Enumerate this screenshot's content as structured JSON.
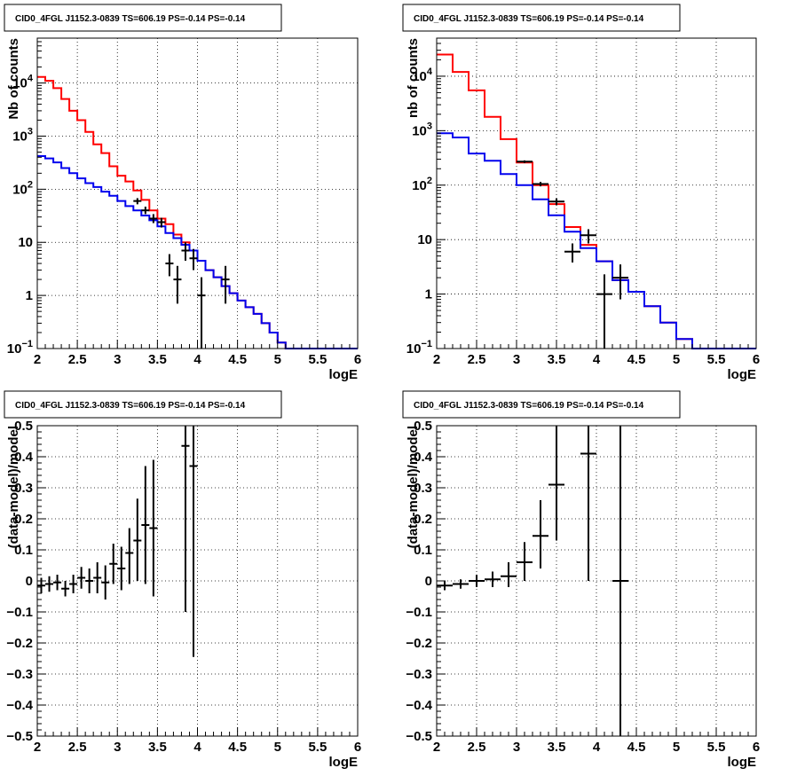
{
  "colors": {
    "data": "#000000",
    "model_total": "#ff0000",
    "model_background": "#0000ee",
    "grid": "#000000"
  },
  "chart_data": [
    {
      "type": "line",
      "title": "CID0_4FGL J1152.3-0839 TS=606.19 PS=-0.14 PS=-0.14",
      "xlabel": "logE",
      "ylabel": "Nb of counts",
      "xlim": [
        2,
        6
      ],
      "ylim": [
        0.1,
        70000
      ],
      "yscale": "log",
      "grid": true,
      "xticks": [
        "2",
        "2.5",
        "3",
        "3.5",
        "4",
        "4.5",
        "5",
        "5.5",
        "6"
      ],
      "yticks": [
        {
          "v": 0.1,
          "label": "10",
          "sup": "−1"
        },
        {
          "v": 1,
          "label": "1",
          "sup": ""
        },
        {
          "v": 10,
          "label": "10",
          "sup": ""
        },
        {
          "v": 100,
          "label": "10",
          "sup": "2"
        },
        {
          "v": 1000,
          "label": "10",
          "sup": "3"
        },
        {
          "v": 10000,
          "label": "10",
          "sup": "4"
        }
      ],
      "bin_edges": [
        2.0,
        2.1,
        2.2,
        2.3,
        2.4,
        2.5,
        2.6,
        2.7,
        2.8,
        2.9,
        3.0,
        3.1,
        3.2,
        3.3,
        3.4,
        3.5,
        3.6,
        3.7,
        3.8,
        3.9,
        4.0,
        4.1,
        4.2,
        4.3,
        4.4,
        4.5,
        4.6,
        4.7,
        4.8,
        4.9,
        5.0,
        5.1,
        5.2,
        5.3,
        5.4,
        5.5,
        5.6,
        5.7,
        5.8,
        5.9,
        6.0
      ],
      "series": [
        {
          "name": "",
          "kind": "step",
          "color": "model_total",
          "values": [
            13000,
            11000,
            8000,
            5000,
            3000,
            2000,
            1200,
            700,
            480,
            270,
            180,
            140,
            95,
            63,
            40,
            28,
            22,
            14,
            10,
            7,
            4.5,
            3,
            2.2,
            1.5,
            1.1,
            0.8,
            0.6,
            0.45,
            0.3,
            0.2,
            0.13,
            0.1,
            0.1,
            0.1,
            0.1,
            0.1,
            0.1,
            0.1,
            0.1,
            0.1
          ]
        },
        {
          "name": "",
          "kind": "step",
          "color": "model_background",
          "values": [
            420,
            380,
            320,
            250,
            200,
            160,
            130,
            110,
            90,
            75,
            60,
            48,
            40,
            32,
            26,
            20,
            15,
            12,
            9,
            7,
            4.5,
            3,
            2.2,
            1.5,
            1.1,
            0.8,
            0.6,
            0.45,
            0.3,
            0.2,
            0.13,
            0.1,
            0.1,
            0.1,
            0.1,
            0.1,
            0.1,
            0.1,
            0.1,
            0.1
          ]
        },
        {
          "name": "",
          "kind": "points",
          "color": "data",
          "points": [
            {
              "x": 3.25,
              "y": 60,
              "lo": 52,
              "hi": 68
            },
            {
              "x": 3.35,
              "y": 40,
              "lo": 34,
              "hi": 47
            },
            {
              "x": 3.45,
              "y": 28,
              "lo": 23,
              "hi": 34
            },
            {
              "x": 3.55,
              "y": 24,
              "lo": 19,
              "hi": 29
            },
            {
              "x": 3.65,
              "y": 4,
              "lo": 2.3,
              "hi": 6
            },
            {
              "x": 3.75,
              "y": 2,
              "lo": 0.7,
              "hi": 3.6
            },
            {
              "x": 3.85,
              "y": 7,
              "lo": 4.5,
              "hi": 10
            },
            {
              "x": 3.95,
              "y": 5,
              "lo": 3,
              "hi": 7.5
            },
            {
              "x": 4.05,
              "y": 1,
              "lo": 0.1,
              "hi": 2.2
            },
            {
              "x": 4.35,
              "y": 2,
              "lo": 0.7,
              "hi": 3.6
            }
          ]
        }
      ]
    },
    {
      "type": "line",
      "title": "CID0_4FGL J1152.3-0839 TS=606.19 PS=-0.14 PS=-0.14",
      "xlabel": "logE",
      "ylabel": "nb of counts",
      "xlim": [
        2,
        6
      ],
      "ylim": [
        0.1,
        50000
      ],
      "yscale": "log",
      "grid": true,
      "xticks": [
        "2",
        "2.5",
        "3",
        "3.5",
        "4",
        "4.5",
        "5",
        "5.5",
        "6"
      ],
      "yticks": [
        {
          "v": 0.1,
          "label": "10",
          "sup": "−1"
        },
        {
          "v": 1,
          "label": "1",
          "sup": ""
        },
        {
          "v": 10,
          "label": "10",
          "sup": ""
        },
        {
          "v": 100,
          "label": "10",
          "sup": "2"
        },
        {
          "v": 1000,
          "label": "10",
          "sup": "3"
        },
        {
          "v": 10000,
          "label": "10",
          "sup": "4"
        }
      ],
      "bin_edges": [
        2.0,
        2.2,
        2.4,
        2.6,
        2.8,
        3.0,
        3.2,
        3.4,
        3.6,
        3.8,
        4.0,
        4.2,
        4.4,
        4.6,
        4.8,
        5.0,
        5.2,
        5.4,
        5.6,
        5.8,
        6.0
      ],
      "series": [
        {
          "name": "",
          "kind": "step",
          "color": "model_total",
          "values": [
            25000,
            12000,
            5500,
            1800,
            700,
            260,
            100,
            45,
            17,
            8,
            4,
            1.8,
            1.1,
            0.6,
            0.3,
            0.15,
            0.1,
            0.1,
            0.1,
            0.1
          ]
        },
        {
          "name": "",
          "kind": "step",
          "color": "model_background",
          "values": [
            900,
            750,
            380,
            280,
            160,
            100,
            55,
            28,
            14,
            7,
            4,
            1.8,
            1.1,
            0.6,
            0.3,
            0.15,
            0.1,
            0.1,
            0.1,
            0.1
          ]
        },
        {
          "name": "",
          "kind": "points",
          "color": "data",
          "points": [
            {
              "x": 3.1,
              "y": 270,
              "lo": 255,
              "hi": 285
            },
            {
              "x": 3.3,
              "y": 105,
              "lo": 95,
              "hi": 115
            },
            {
              "x": 3.5,
              "y": 50,
              "lo": 43,
              "hi": 57
            },
            {
              "x": 3.7,
              "y": 6,
              "lo": 3.8,
              "hi": 8.5
            },
            {
              "x": 3.9,
              "y": 12,
              "lo": 8.5,
              "hi": 15.5
            },
            {
              "x": 4.1,
              "y": 1,
              "lo": 0.1,
              "hi": 2.3
            },
            {
              "x": 4.3,
              "y": 2,
              "lo": 0.8,
              "hi": 3.5
            }
          ]
        }
      ]
    },
    {
      "type": "scatter",
      "title": "CID0_4FGL J1152.3-0839 TS=606.19 PS=-0.14 PS=-0.14",
      "xlabel": "logE",
      "ylabel": "(data-model)/model",
      "xlim": [
        2,
        6
      ],
      "ylim": [
        -0.5,
        0.5
      ],
      "yscale": "linear",
      "grid": true,
      "xticks": [
        "2",
        "2.5",
        "3",
        "3.5",
        "4",
        "4.5",
        "5",
        "5.5",
        "6"
      ],
      "yticks": [
        {
          "v": -0.5,
          "label": "−0.5"
        },
        {
          "v": -0.4,
          "label": "−0.4"
        },
        {
          "v": -0.3,
          "label": "−0.3"
        },
        {
          "v": -0.2,
          "label": "−0.2"
        },
        {
          "v": -0.1,
          "label": "−0.1"
        },
        {
          "v": 0,
          "label": "0"
        },
        {
          "v": 0.1,
          "label": "0.1"
        },
        {
          "v": 0.2,
          "label": "0.2"
        },
        {
          "v": 0.3,
          "label": "0.3"
        },
        {
          "v": 0.4,
          "label": "0.4"
        },
        {
          "v": 0.5,
          "label": "0.5"
        }
      ],
      "bin_width": 0.1,
      "series": [
        {
          "name": "",
          "kind": "points",
          "color": "data",
          "points": [
            {
              "x": 2.05,
              "y": -0.015,
              "lo": -0.04,
              "hi": 0.01
            },
            {
              "x": 2.15,
              "y": -0.01,
              "lo": -0.035,
              "hi": 0.015
            },
            {
              "x": 2.25,
              "y": -0.005,
              "lo": -0.03,
              "hi": 0.02
            },
            {
              "x": 2.35,
              "y": -0.025,
              "lo": -0.05,
              "hi": 0.0
            },
            {
              "x": 2.45,
              "y": -0.01,
              "lo": -0.04,
              "hi": 0.02
            },
            {
              "x": 2.55,
              "y": 0.01,
              "lo": -0.025,
              "hi": 0.045
            },
            {
              "x": 2.65,
              "y": 0.0,
              "lo": -0.04,
              "hi": 0.04
            },
            {
              "x": 2.75,
              "y": 0.01,
              "lo": -0.04,
              "hi": 0.06
            },
            {
              "x": 2.85,
              "y": -0.005,
              "lo": -0.06,
              "hi": 0.05
            },
            {
              "x": 2.95,
              "y": 0.055,
              "lo": -0.01,
              "hi": 0.12
            },
            {
              "x": 3.05,
              "y": 0.04,
              "lo": -0.03,
              "hi": 0.11
            },
            {
              "x": 3.15,
              "y": 0.09,
              "lo": -0.01,
              "hi": 0.17
            },
            {
              "x": 3.25,
              "y": 0.13,
              "lo": 0.0,
              "hi": 0.265
            },
            {
              "x": 3.35,
              "y": 0.18,
              "lo": -0.01,
              "hi": 0.37
            },
            {
              "x": 3.45,
              "y": 0.17,
              "lo": -0.05,
              "hi": 0.39
            },
            {
              "x": 3.85,
              "y": 0.435,
              "lo": -0.1,
              "hi": 0.5
            },
            {
              "x": 3.95,
              "y": 0.37,
              "lo": -0.245,
              "hi": 0.5
            }
          ]
        }
      ]
    },
    {
      "type": "scatter",
      "title": "CID0_4FGL J1152.3-0839 TS=606.19 PS=-0.14 PS=-0.14",
      "xlabel": "logE",
      "ylabel": "(data-model)/model",
      "xlim": [
        2,
        6
      ],
      "ylim": [
        -0.5,
        0.5
      ],
      "yscale": "linear",
      "grid": true,
      "xticks": [
        "2",
        "2.5",
        "3",
        "3.5",
        "4",
        "4.5",
        "5",
        "5.5",
        "6"
      ],
      "yticks": [
        {
          "v": -0.5,
          "label": "−0.5"
        },
        {
          "v": -0.4,
          "label": "−0.4"
        },
        {
          "v": -0.3,
          "label": "−0.3"
        },
        {
          "v": -0.2,
          "label": "−0.2"
        },
        {
          "v": -0.1,
          "label": "−0.1"
        },
        {
          "v": 0,
          "label": "0"
        },
        {
          "v": 0.1,
          "label": "0.1"
        },
        {
          "v": 0.2,
          "label": "0.2"
        },
        {
          "v": 0.3,
          "label": "0.3"
        },
        {
          "v": 0.4,
          "label": "0.4"
        },
        {
          "v": 0.5,
          "label": "0.5"
        }
      ],
      "bin_width": 0.2,
      "series": [
        {
          "name": "",
          "kind": "points",
          "color": "data",
          "points": [
            {
              "x": 2.1,
              "y": -0.015,
              "lo": -0.03,
              "hi": 0.0
            },
            {
              "x": 2.3,
              "y": -0.01,
              "lo": -0.025,
              "hi": 0.005
            },
            {
              "x": 2.5,
              "y": 0.0,
              "lo": -0.02,
              "hi": 0.02
            },
            {
              "x": 2.7,
              "y": 0.005,
              "lo": -0.02,
              "hi": 0.03
            },
            {
              "x": 2.9,
              "y": 0.015,
              "lo": -0.02,
              "hi": 0.06
            },
            {
              "x": 3.1,
              "y": 0.06,
              "lo": 0.0,
              "hi": 0.125
            },
            {
              "x": 3.3,
              "y": 0.145,
              "lo": 0.04,
              "hi": 0.26
            },
            {
              "x": 3.5,
              "y": 0.31,
              "lo": 0.13,
              "hi": 0.5
            },
            {
              "x": 3.9,
              "y": 0.41,
              "lo": 0.0,
              "hi": 0.5
            },
            {
              "x": 4.3,
              "y": 0.0,
              "lo": -0.5,
              "hi": 0.5
            }
          ]
        }
      ]
    }
  ]
}
